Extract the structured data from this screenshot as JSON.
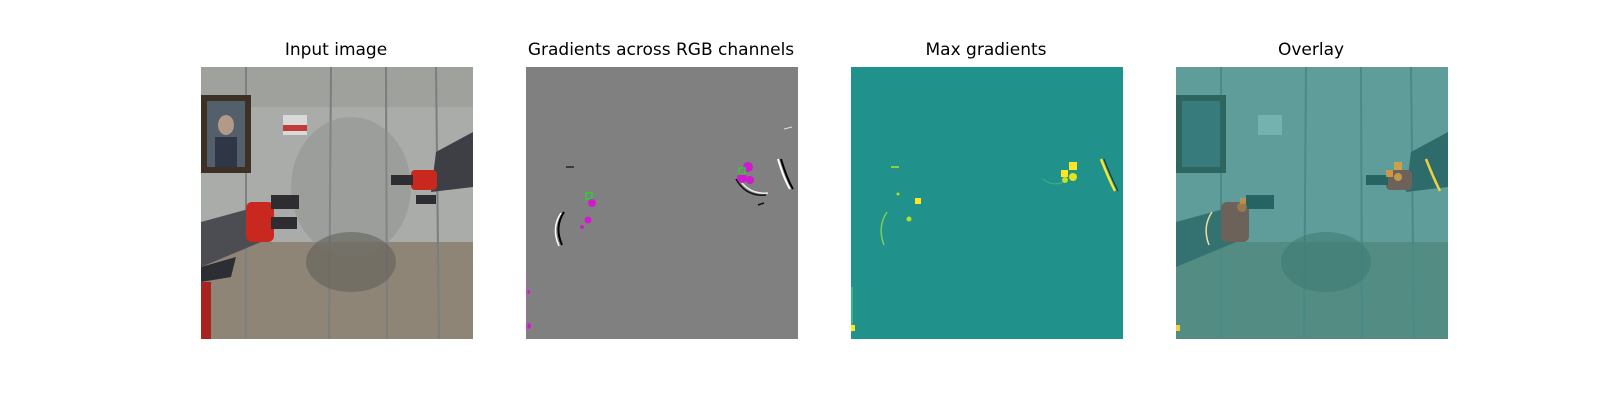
{
  "figure": {
    "panels": [
      {
        "title": "Input image"
      },
      {
        "title": "Gradients across RGB channels"
      },
      {
        "title": "Max gradients"
      },
      {
        "title": "Overlay"
      }
    ]
  },
  "colors": {
    "gradient_gray": "#808080",
    "max_grad_teal": "#21918c",
    "highlight_yellow": "#fde725",
    "gradient_magenta": "#d01ad0",
    "gradient_green": "#33cc33",
    "gripper_red": "#c8281e"
  }
}
